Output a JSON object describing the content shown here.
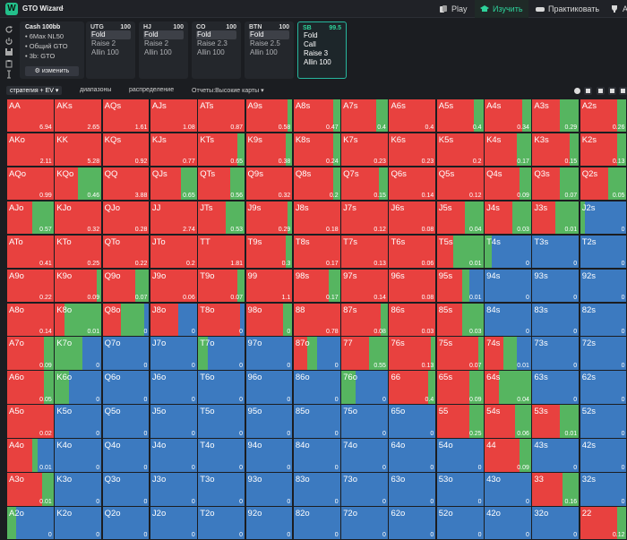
{
  "header": {
    "brand": "GTO Wizard",
    "nav": [
      {
        "label": "Play",
        "icon": "cards-icon"
      },
      {
        "label": "Изучить",
        "icon": "graduation-cap-icon"
      },
      {
        "label": "Практиковать",
        "icon": "gamepad-icon"
      },
      {
        "label": "А",
        "icon": "trophy-icon"
      }
    ]
  },
  "config": {
    "title": "Cash 100bb",
    "lines": [
      "• 6Max NL50",
      "• Общий GTO",
      "• 3b: GTO"
    ],
    "edit_label": "изменить"
  },
  "positions": [
    {
      "name": "UTG",
      "stack": "100",
      "actions": [
        "Fold",
        "Raise 2",
        "Allin 100"
      ],
      "selected": 0
    },
    {
      "name": "HJ",
      "stack": "100",
      "actions": [
        "Fold",
        "Raise 2",
        "Allin 100"
      ],
      "selected": 0
    },
    {
      "name": "CO",
      "stack": "100",
      "actions": [
        "Fold",
        "Raise 2.3",
        "Allin 100"
      ],
      "selected": 0
    },
    {
      "name": "BTN",
      "stack": "100",
      "actions": [
        "Fold",
        "Raise 2.5",
        "Allin 100"
      ],
      "selected": 0
    },
    {
      "name": "SB",
      "stack": "99.5",
      "actions": [
        "Fold",
        "Call",
        "Raise 3",
        "Allin 100"
      ],
      "selected": -1
    }
  ],
  "tabs": [
    "стратегия + EV",
    "диапазоны",
    "распределение",
    "Отчеты:Высокие карты"
  ],
  "colors": {
    "raise": "#e8413f",
    "call": "#56b560",
    "fold": "#3c7ac0"
  },
  "grid": [
    [
      "AA|6.94|r",
      "AKs|2.65|r",
      "AQs|1.61|r",
      "AJs|1.08|r",
      "ATs|0.87|r",
      "A9s|0.58|r:0.9,c:0.1",
      "A8s|0.47|r:0.85,c:0.15",
      "A7s|0.4|r:0.75,c:0.25",
      "A6s|0.4|r",
      "A5s|0.4|r:0.8,c:0.2",
      "A4s|0.34|r:0.8,c:0.2",
      "A3s|0.29|r:0.6,c:0.4",
      "A2s|0.26|r:0.8,c:0.2"
    ],
    [
      "AKo|2.11|r",
      "KK|5.28|r",
      "KQs|0.92|r",
      "KJs|0.77|r",
      "KTs|0.65|r:0.85,c:0.15",
      "K9s|0.38|r:0.85,c:0.15",
      "K8s|0.24|r:0.85,c:0.15",
      "K7s|0.23|r",
      "K6s|0.23|r",
      "K5s|0.2|r",
      "K4s|0.17|r:0.7,c:0.3",
      "K3s|0.15|r:0.8,c:0.2",
      "K2s|0.13|r:0.8,c:0.2"
    ],
    [
      "AQo|0.99|r",
      "KQo|0.46|r:0.5,c:0.5",
      "QQ|3.88|r",
      "QJs|0.65|r:0.65,c:0.35",
      "QTs|0.56|r:0.7,c:0.3",
      "Q9s|0.32|r",
      "Q8s|0.2|r:0.85,c:0.15",
      "Q7s|0.15|r:0.8,c:0.2",
      "Q6s|0.14|r",
      "Q5s|0.12|r",
      "Q4s|0.09|r:0.75,c:0.25",
      "Q3s|0.07|r:0.6,c:0.4",
      "Q2s|0.05|r:0.6,c:0.4"
    ],
    [
      "AJo|0.57|r:0.55,c:0.45",
      "KJo|0.32|r",
      "QJo|0.28|r",
      "JJ|2.74|r",
      "JTs|0.53|r:0.6,c:0.4",
      "J9s|0.29|r:0.9,c:0.1",
      "J8s|0.18|r",
      "J7s|0.12|r",
      "J6s|0.08|r",
      "J5s|0.04|r:0.6,c:0.4",
      "J4s|0.03|r:0.6,c:0.4",
      "J3s|0.01|r:0.5,c:0.5",
      "J2s|0|c:0.1,f:0.9"
    ],
    [
      "ATo|0.41|r",
      "KTo|0.25|r",
      "QTo|0.22|r",
      "JTo|0.2|r",
      "TT|1.81|r",
      "T9s|0.3|r:0.85,c:0.15",
      "T8s|0.17|r",
      "T7s|0.13|r",
      "T6s|0.06|r",
      "T5s|0.01|r:0.35,c:0.65",
      "T4s|0|c:0.15,f:0.85",
      "T3s|0|f",
      "T2s|0|f"
    ],
    [
      "A9o|0.22|r",
      "K9o|0.09|r:0.9,c:0.1",
      "Q9o|0.07|r:0.7,c:0.3",
      "J9o|0.06|r",
      "T9o|0.07|r:0.85,c:0.15",
      "99|1.1|r",
      "98s|0.17|r:0.75,c:0.25",
      "97s|0.14|r",
      "96s|0.08|r",
      "95s|0.01|r:0.55,c:0.15,f:0.3",
      "94s|0|f",
      "93s|0|f",
      "92s|0|f"
    ],
    [
      "A8o|0.14|r",
      "K8o|0.01|r:0.2,c:0.8",
      "Q8o|0|r:0.4,c:0.5,f:0.1",
      "J8o|0|r:0.6,f:0.4",
      "T8o|0|r:0.9,f:0.1",
      "98o|0|r:0.8,c:0.2",
      "88|0.78|r",
      "87s|0.08|r:0.85,c:0.15",
      "86s|0.03|r",
      "85s|0.03|r:0.55,c:0.45",
      "84s|0|f",
      "83s|0|f",
      "82s|0|f"
    ],
    [
      "A7o|0.09|r:0.8,c:0.2",
      "K7o|0|c:0.6,f:0.4",
      "Q7o|0|f",
      "J7o|0|f",
      "T7o|0|c:0.2,f:0.8",
      "97o|0|f",
      "87o|0|r:0.3,c:0.2,f:0.5",
      "77|0.55|r:0.6,c:0.4",
      "76s|0.13|r:0.9,c:0.1",
      "75s|0.07|r:0.9,c:0.1",
      "74s|0.01|r:0.4,c:0.3,f:0.3",
      "73s|0|f",
      "72s|0|f"
    ],
    [
      "A6o|0.05|r:0.8,c:0.2",
      "K6o|0|c:0.3,f:0.7",
      "Q6o|0|f",
      "J6o|0|f",
      "T6o|0|f",
      "96o|0|f",
      "86o|0|f",
      "76o|0|c:0.3,f:0.7",
      "66|0.4|r:0.85,c:0.15",
      "65s|0.09|r:0.7,c:0.3",
      "64s|0.04|r:0.3,c:0.7",
      "63s|0|f",
      "62s|0|f"
    ],
    [
      "A5o|0.02|r",
      "K5o|0|f",
      "Q5o|0|f",
      "J5o|0|f",
      "T5o|0|f",
      "95o|0|f",
      "85o|0|f",
      "75o|0|f",
      "65o|0|f",
      "55|0.25|r:0.7,c:0.3",
      "54s|0.06|r:0.65,c:0.35",
      "53s|0.01|r:0.6,c:0.4",
      "52s|0|f"
    ],
    [
      "A4o|0.01|r:0.55,c:0.1,f:0.35",
      "K4o|0|f",
      "Q4o|0|f",
      "J4o|0|f",
      "T4o|0|f",
      "94o|0|f",
      "84o|0|f",
      "74o|0|f",
      "64o|0|f",
      "54o|0|f",
      "44|0.09|r:0.75,c:0.25",
      "43s|0|f",
      "42s|0|f"
    ],
    [
      "A3o|0.01|r:0.75,c:0.25",
      "K3o|0|f",
      "Q3o|0|f",
      "J3o|0|f",
      "T3o|0|f",
      "93o|0|f",
      "83o|0|f",
      "73o|0|f",
      "63o|0|f",
      "53o|0|f",
      "43o|0|f",
      "33|0.16|r:0.65,c:0.35",
      "32s|0|f"
    ],
    [
      "A2o|0|c:0.2,f:0.8",
      "K2o|0|f",
      "Q2o|0|f",
      "J2o|0|f",
      "T2o|0|f",
      "92o|0|f",
      "82o|0|f",
      "72o|0|f",
      "62o|0|f",
      "52o|0|f",
      "42o|0|f",
      "32o|0|f",
      "22|0.12|r:0.8,c:0.2"
    ]
  ]
}
